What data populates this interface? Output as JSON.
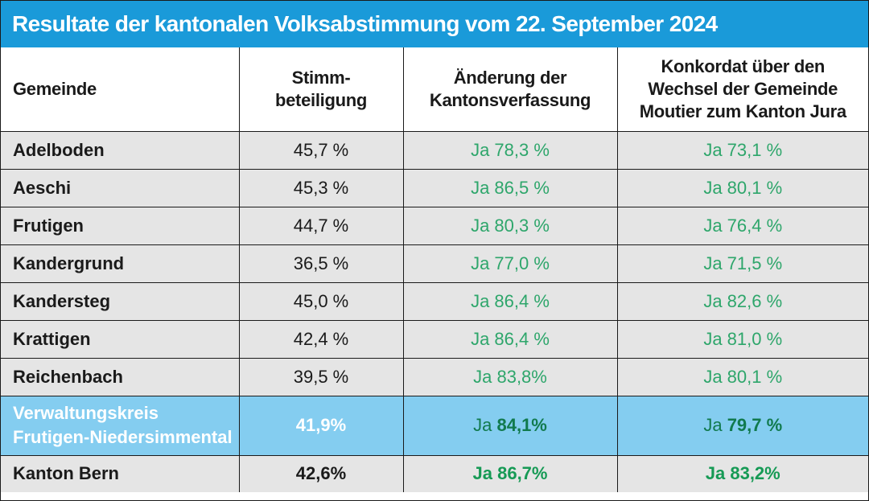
{
  "title": "Resultate der kantonalen Volksabstimmung vom 22. September 2024",
  "colors": {
    "title_bar": "#1a9ad9",
    "ja_text": "#2ea66b",
    "region_row": "#84cdf0",
    "row_background": "#e5e5e5"
  },
  "headers": {
    "gemeinde": "Gemeinde",
    "turnout": [
      "Stimm-",
      "beteiligung"
    ],
    "proposal1": [
      "Änderung der",
      "Kantonsverfassung"
    ],
    "proposal2": [
      "Konkordat über den",
      "Wechsel der Gemeinde",
      "Moutier zum Kanton Jura"
    ]
  },
  "rows": [
    {
      "gemeinde": "Adelboden",
      "turnout": "45,7 %",
      "proposal1": "Ja 78,3 %",
      "proposal2": "Ja 73,1 %"
    },
    {
      "gemeinde": "Aeschi",
      "turnout": "45,3 %",
      "proposal1": "Ja 86,5 %",
      "proposal2": "Ja 80,1 %"
    },
    {
      "gemeinde": "Frutigen",
      "turnout": "44,7 %",
      "proposal1": "Ja 80,3 %",
      "proposal2": "Ja 76,4 %"
    },
    {
      "gemeinde": "Kandergrund",
      "turnout": "36,5 %",
      "proposal1": "Ja 77,0 %",
      "proposal2": "Ja 71,5 %"
    },
    {
      "gemeinde": "Kandersteg",
      "turnout": "45,0 %",
      "proposal1": "Ja 86,4 %",
      "proposal2": "Ja 82,6 %"
    },
    {
      "gemeinde": "Krattigen",
      "turnout": "42,4 %",
      "proposal1": "Ja 86,4 %",
      "proposal2": "Ja 81,0 %"
    },
    {
      "gemeinde": "Reichenbach",
      "turnout": "39,5 %",
      "proposal1": "Ja 83,8%",
      "proposal2": "Ja 80,1 %"
    }
  ],
  "region": {
    "name_line1": "Verwaltungskreis",
    "name_line2": "Frutigen-Niedersimmental",
    "turnout": "41,9%",
    "proposal1_prefix": "Ja",
    "proposal1_value": "84,1%",
    "proposal2_prefix": "Ja",
    "proposal2_value": "79,7 %"
  },
  "total": {
    "gemeinde": "Kanton Bern",
    "turnout": "42,6%",
    "proposal1": "Ja 86,7%",
    "proposal2": "Ja 83,2%"
  }
}
